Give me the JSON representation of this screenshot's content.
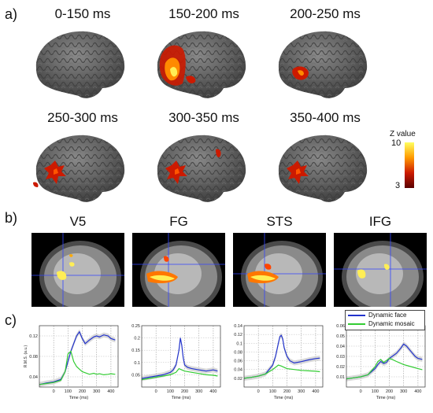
{
  "panel_labels": [
    "a)",
    "b)",
    "c)"
  ],
  "brain_windows": [
    "0-150 ms",
    "150-200 ms",
    "200-250 ms",
    "250-300 ms",
    "300-350 ms",
    "350-400 ms"
  ],
  "zscale": {
    "title": "Z value",
    "max": "10",
    "min": "3"
  },
  "slices": [
    "V5",
    "FG",
    "STS",
    "IFG"
  ],
  "legend": {
    "face": "Dynamic face",
    "mosaic": "Dynamic mosaic"
  },
  "colors": {
    "face": "#2233cc",
    "mosaic": "#33cc33",
    "shade": "#cfcfcf"
  },
  "axis": {
    "ylabel": "R.M.S. (a.u.)",
    "xlabel": "Time (ms)"
  },
  "chart_data": [
    {
      "type": "line",
      "title": "",
      "xlabel": "Time (ms)",
      "ylabel": "R.M.S. (a.u.)",
      "xlim": [
        -100,
        450
      ],
      "ylim": [
        0.02,
        0.14
      ],
      "yticks": [
        "0.12",
        "0.08",
        "0.04"
      ],
      "xticks": [
        "0",
        "100",
        "200",
        "300",
        "400"
      ],
      "series": [
        {
          "name": "Dynamic face",
          "x": [
            -100,
            -50,
            0,
            50,
            80,
            100,
            120,
            140,
            160,
            180,
            200,
            220,
            250,
            280,
            300,
            320,
            350,
            380,
            400,
            430
          ],
          "y": [
            0.025,
            0.028,
            0.03,
            0.035,
            0.05,
            0.07,
            0.09,
            0.105,
            0.12,
            0.128,
            0.115,
            0.105,
            0.112,
            0.118,
            0.12,
            0.118,
            0.122,
            0.12,
            0.115,
            0.112
          ]
        },
        {
          "name": "Dynamic mosaic",
          "x": [
            -100,
            -50,
            0,
            50,
            80,
            100,
            120,
            140,
            160,
            180,
            200,
            220,
            250,
            280,
            300,
            320,
            350,
            380,
            400,
            430
          ],
          "y": [
            0.025,
            0.027,
            0.029,
            0.033,
            0.05,
            0.085,
            0.09,
            0.07,
            0.06,
            0.055,
            0.05,
            0.048,
            0.045,
            0.047,
            0.045,
            0.046,
            0.044,
            0.045,
            0.046,
            0.045
          ]
        }
      ]
    },
    {
      "type": "line",
      "title": "",
      "xlabel": "Time (ms)",
      "ylabel": "",
      "xlim": [
        -100,
        450
      ],
      "ylim": [
        0.0,
        0.25
      ],
      "yticks": [
        "0.25",
        "0.2",
        "0.15",
        "0.1",
        "0.05"
      ],
      "xticks": [
        "0",
        "100",
        "200",
        "300",
        "400"
      ],
      "series": [
        {
          "name": "Dynamic face",
          "x": [
            -100,
            -50,
            0,
            50,
            100,
            120,
            140,
            160,
            170,
            180,
            190,
            200,
            220,
            250,
            300,
            350,
            400,
            430
          ],
          "y": [
            0.035,
            0.04,
            0.045,
            0.05,
            0.06,
            0.07,
            0.09,
            0.15,
            0.2,
            0.17,
            0.12,
            0.09,
            0.08,
            0.075,
            0.07,
            0.065,
            0.07,
            0.065
          ]
        },
        {
          "name": "Dynamic mosaic",
          "x": [
            -100,
            -50,
            0,
            50,
            100,
            120,
            140,
            160,
            180,
            200,
            250,
            300,
            350,
            400,
            430
          ],
          "y": [
            0.03,
            0.035,
            0.04,
            0.045,
            0.05,
            0.055,
            0.06,
            0.075,
            0.07,
            0.065,
            0.06,
            0.055,
            0.05,
            0.048,
            0.045
          ]
        }
      ]
    },
    {
      "type": "line",
      "title": "",
      "xlabel": "Time (ms)",
      "ylabel": "",
      "xlim": [
        -100,
        450
      ],
      "ylim": [
        0.0,
        0.14
      ],
      "yticks": [
        "0.14",
        "0.12",
        "0.1",
        "0.08",
        "0.06",
        "0.04",
        "0.02"
      ],
      "xticks": [
        "0",
        "100",
        "200",
        "300",
        "400"
      ],
      "series": [
        {
          "name": "Dynamic face",
          "x": [
            -100,
            -50,
            0,
            50,
            100,
            120,
            140,
            150,
            160,
            170,
            180,
            200,
            220,
            250,
            300,
            350,
            400,
            430
          ],
          "y": [
            0.02,
            0.022,
            0.025,
            0.03,
            0.05,
            0.07,
            0.1,
            0.115,
            0.118,
            0.11,
            0.09,
            0.07,
            0.06,
            0.055,
            0.058,
            0.062,
            0.065,
            0.066
          ]
        },
        {
          "name": "Dynamic mosaic",
          "x": [
            -100,
            -50,
            0,
            50,
            100,
            120,
            140,
            160,
            180,
            200,
            250,
            300,
            350,
            400,
            430
          ],
          "y": [
            0.02,
            0.022,
            0.025,
            0.03,
            0.04,
            0.045,
            0.05,
            0.048,
            0.045,
            0.042,
            0.04,
            0.038,
            0.037,
            0.036,
            0.035
          ]
        }
      ]
    },
    {
      "type": "line",
      "title": "",
      "xlabel": "Time (ms)",
      "ylabel": "",
      "xlim": [
        -100,
        450
      ],
      "ylim": [
        0.0,
        0.06
      ],
      "yticks": [
        "0.06",
        "0.05",
        "0.04",
        "0.03",
        "0.02",
        "0.01"
      ],
      "xticks": [
        "0",
        "100",
        "200",
        "300",
        "400"
      ],
      "series": [
        {
          "name": "Dynamic face",
          "x": [
            -100,
            -50,
            0,
            50,
            100,
            120,
            140,
            160,
            180,
            200,
            220,
            250,
            280,
            300,
            320,
            350,
            380,
            400,
            430
          ],
          "y": [
            0.008,
            0.009,
            0.01,
            0.012,
            0.018,
            0.022,
            0.025,
            0.023,
            0.024,
            0.028,
            0.03,
            0.033,
            0.038,
            0.042,
            0.04,
            0.035,
            0.03,
            0.028,
            0.027
          ]
        },
        {
          "name": "Dynamic mosaic",
          "x": [
            -100,
            -50,
            0,
            50,
            100,
            120,
            140,
            160,
            180,
            200,
            220,
            250,
            300,
            350,
            400,
            430
          ],
          "y": [
            0.008,
            0.009,
            0.01,
            0.012,
            0.02,
            0.025,
            0.027,
            0.024,
            0.026,
            0.028,
            0.027,
            0.025,
            0.022,
            0.02,
            0.018,
            0.017
          ]
        }
      ]
    }
  ]
}
